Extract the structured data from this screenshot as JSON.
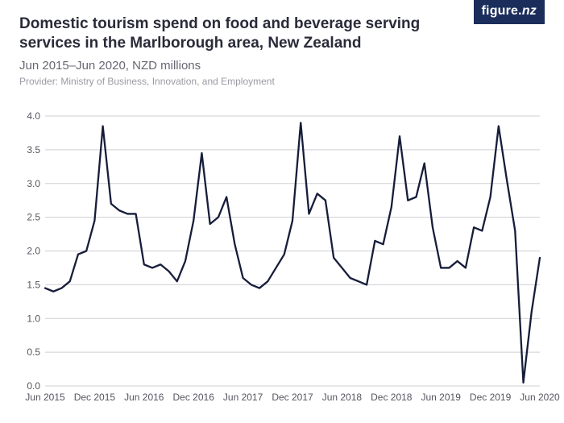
{
  "logo": {
    "prefix": "figure.",
    "suffix": "nz"
  },
  "header": {
    "title": "Domestic tourism spend on food and beverage serving services in the Marlborough area, New Zealand",
    "subtitle": "Jun 2015–Jun 2020, NZD millions",
    "provider": "Provider: Ministry of Business, Innovation, and Employment"
  },
  "chart": {
    "type": "line",
    "background_color": "#ffffff",
    "grid_color": "#cfcfd4",
    "line_color": "#161d3a",
    "line_width": 2.3,
    "text_color": "#555560",
    "tick_fontsize": 12,
    "ylim": [
      0.0,
      4.0
    ],
    "ytick_step": 0.5,
    "yticks": [
      {
        "v": 0.0,
        "label": "0.0"
      },
      {
        "v": 0.5,
        "label": "0.5"
      },
      {
        "v": 1.0,
        "label": "1.0"
      },
      {
        "v": 1.5,
        "label": "1.5"
      },
      {
        "v": 2.0,
        "label": "2.0"
      },
      {
        "v": 2.5,
        "label": "2.5"
      },
      {
        "v": 3.0,
        "label": "3.0"
      },
      {
        "v": 3.5,
        "label": "3.5"
      },
      {
        "v": 4.0,
        "label": "4.0"
      }
    ],
    "xlim_indices": [
      0,
      60
    ],
    "xticks": [
      {
        "i": 0,
        "label": "Jun 2015"
      },
      {
        "i": 6,
        "label": "Dec 2015"
      },
      {
        "i": 12,
        "label": "Jun 2016"
      },
      {
        "i": 18,
        "label": "Dec 2016"
      },
      {
        "i": 24,
        "label": "Jun 2017"
      },
      {
        "i": 30,
        "label": "Dec 2017"
      },
      {
        "i": 36,
        "label": "Jun 2018"
      },
      {
        "i": 42,
        "label": "Dec 2018"
      },
      {
        "i": 48,
        "label": "Jun 2019"
      },
      {
        "i": 54,
        "label": "Dec 2019"
      },
      {
        "i": 60,
        "label": "Jun 2020"
      }
    ],
    "values": [
      1.45,
      1.4,
      1.45,
      1.55,
      1.95,
      2.0,
      2.45,
      3.85,
      2.7,
      2.6,
      2.55,
      2.55,
      1.8,
      1.75,
      1.8,
      1.7,
      1.55,
      1.85,
      2.45,
      3.45,
      2.4,
      2.5,
      2.8,
      2.1,
      1.6,
      1.5,
      1.45,
      1.55,
      1.75,
      1.95,
      2.45,
      3.9,
      2.55,
      2.85,
      2.75,
      1.9,
      1.75,
      1.6,
      1.55,
      1.5,
      2.15,
      2.1,
      2.65,
      3.7,
      2.75,
      2.8,
      3.3,
      2.35,
      1.75,
      1.75,
      1.85,
      1.75,
      2.35,
      2.3,
      2.8,
      3.85,
      3.05,
      2.3,
      0.05,
      1.1,
      1.9
    ]
  }
}
